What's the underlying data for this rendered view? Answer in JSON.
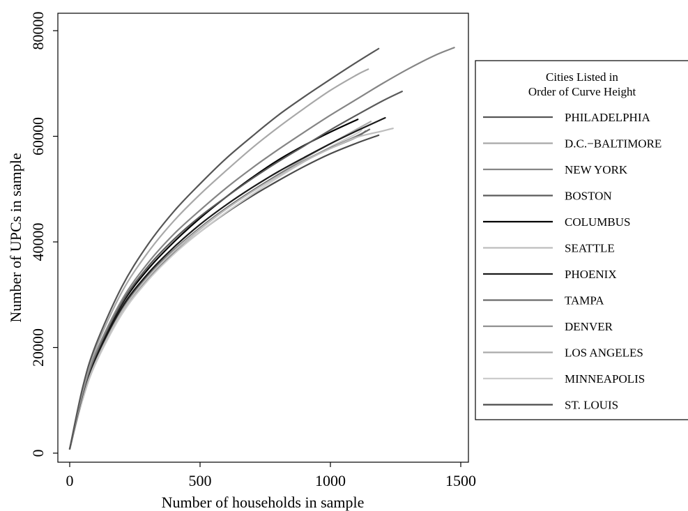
{
  "chart_data": {
    "type": "line",
    "title": "",
    "xlabel": "Number of households in sample",
    "ylabel": "Number of UPCs in sample",
    "xlim": [
      0,
      1500
    ],
    "ylim": [
      0,
      80000
    ],
    "x_ticks": [
      0,
      500,
      1000,
      1500
    ],
    "y_ticks": [
      0,
      20000,
      40000,
      60000,
      80000
    ],
    "grid": false,
    "legend": {
      "title_lines": [
        "Cities Listed in",
        "Order of Curve Height"
      ],
      "placement": "right-outside"
    },
    "series": [
      {
        "name": "PHILADELPHIA",
        "color": "#555555",
        "x": [
          0,
          50,
          100,
          200,
          300,
          400,
          500,
          600,
          700,
          800,
          900,
          1000,
          1100,
          1185
        ],
        "y": [
          800,
          12500,
          20500,
          31500,
          39500,
          45800,
          51000,
          55800,
          60000,
          64000,
          67500,
          70800,
          74000,
          76600
        ]
      },
      {
        "name": "D.C.−BALTIMORE",
        "color": "#a8a8a8",
        "x": [
          0,
          50,
          100,
          200,
          300,
          400,
          500,
          600,
          700,
          800,
          900,
          1000,
          1100,
          1145
        ],
        "y": [
          800,
          12000,
          19800,
          30500,
          38000,
          44000,
          49000,
          53500,
          57800,
          61700,
          65300,
          68700,
          71600,
          72700
        ]
      },
      {
        "name": "NEW YORK",
        "color": "#858585",
        "x": [
          0,
          50,
          100,
          200,
          300,
          400,
          500,
          600,
          700,
          800,
          900,
          1000,
          1100,
          1200,
          1300,
          1400,
          1475
        ],
        "y": [
          800,
          11500,
          19000,
          29000,
          36000,
          41500,
          46000,
          50200,
          54000,
          57500,
          60800,
          64000,
          67000,
          70000,
          72800,
          75300,
          76800
        ]
      },
      {
        "name": "BOSTON",
        "color": "#5a5a5a",
        "x": [
          0,
          50,
          100,
          200,
          300,
          400,
          500,
          600,
          700,
          800,
          900,
          1000,
          1100,
          1200,
          1275
        ],
        "y": [
          800,
          11300,
          18600,
          28500,
          35300,
          40500,
          44800,
          48500,
          52000,
          55200,
          58200,
          61200,
          64000,
          66700,
          68500
        ]
      },
      {
        "name": "COLUMBUS",
        "color": "#000000",
        "x": [
          0,
          50,
          100,
          200,
          300,
          400,
          500,
          600,
          700,
          800,
          900,
          1000,
          1105
        ],
        "y": [
          800,
          11200,
          18500,
          28200,
          34800,
          40000,
          44500,
          48500,
          52200,
          55500,
          58300,
          60800,
          63200
        ]
      },
      {
        "name": "SEATTLE",
        "color": "#bdbdbd",
        "x": [
          0,
          50,
          100,
          200,
          300,
          400,
          500,
          600,
          700,
          800,
          900,
          1000,
          1100,
          1200,
          1240
        ],
        "y": [
          800,
          10300,
          17300,
          26800,
          33300,
          38300,
          42500,
          46200,
          49500,
          52500,
          55300,
          57700,
          59800,
          61000,
          61500
        ]
      },
      {
        "name": "PHOENIX",
        "color": "#1a1a1a",
        "x": [
          0,
          50,
          100,
          200,
          300,
          400,
          500,
          600,
          700,
          800,
          900,
          1000,
          1100,
          1210
        ],
        "y": [
          800,
          10900,
          18000,
          27600,
          34000,
          39000,
          43300,
          47000,
          50300,
          53300,
          56000,
          58600,
          61000,
          63500
        ]
      },
      {
        "name": "TAMPA",
        "color": "#6a6a6a",
        "x": [
          0,
          50,
          100,
          200,
          300,
          400,
          500,
          600,
          700,
          800,
          900,
          1000,
          1100,
          1150
        ],
        "y": [
          800,
          10800,
          17800,
          27200,
          33600,
          38500,
          42700,
          46400,
          49700,
          52700,
          55400,
          57800,
          60000,
          61300
        ]
      },
      {
        "name": "DENVER",
        "color": "#909090",
        "x": [
          0,
          50,
          100,
          200,
          300,
          400,
          500,
          600,
          700,
          800,
          900,
          1000,
          1100,
          1135
        ],
        "y": [
          800,
          10700,
          17700,
          27000,
          33400,
          38400,
          42600,
          46300,
          49600,
          52600,
          55300,
          57700,
          59800,
          61000
        ]
      },
      {
        "name": "LOS ANGELES",
        "color": "#aaaaaa",
        "x": [
          0,
          50,
          100,
          200,
          300,
          400,
          500,
          600,
          700,
          800,
          900,
          1000,
          1100,
          1155
        ],
        "y": [
          800,
          10600,
          17500,
          26800,
          33200,
          38200,
          42400,
          46200,
          49600,
          52800,
          55800,
          58600,
          61300,
          62800
        ]
      },
      {
        "name": "MINNEAPOLIS",
        "color": "#cccccc",
        "x": [
          0,
          50,
          100,
          200,
          300,
          400,
          500,
          600,
          700,
          800,
          900,
          1000,
          1100,
          1120
        ],
        "y": [
          800,
          10200,
          17000,
          26300,
          32700,
          37700,
          41900,
          45600,
          49000,
          52200,
          55200,
          58000,
          60500,
          61200
        ]
      },
      {
        "name": "ST. LOUIS",
        "color": "#4a4a4a",
        "x": [
          0,
          50,
          100,
          200,
          300,
          400,
          500,
          600,
          700,
          800,
          900,
          1000,
          1100,
          1185
        ],
        "y": [
          800,
          10500,
          17400,
          26700,
          33000,
          37800,
          41900,
          45500,
          48700,
          51600,
          54300,
          56700,
          58700,
          60200
        ]
      }
    ]
  }
}
